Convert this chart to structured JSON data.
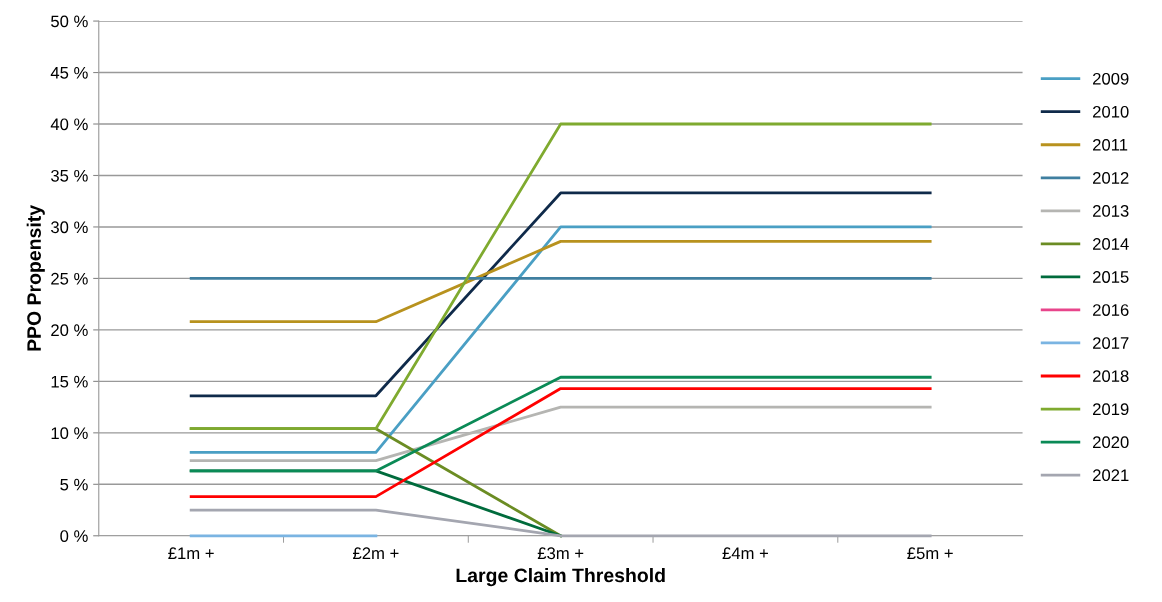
{
  "chart_data": {
    "type": "line",
    "xlabel": "Large Claim Threshold",
    "ylabel": "PPO Propensity",
    "categories": [
      "£1m +",
      "£2m +",
      "£3m +",
      "£4m +",
      "£5m +"
    ],
    "ylim": [
      0,
      50
    ],
    "yticks": [
      {
        "value": 0,
        "label": "0 %"
      },
      {
        "value": 5,
        "label": "5 %"
      },
      {
        "value": 10,
        "label": "10 %"
      },
      {
        "value": 15,
        "label": "15 %"
      },
      {
        "value": 20,
        "label": "20 %"
      },
      {
        "value": 25,
        "label": "25 %"
      },
      {
        "value": 30,
        "label": "30 %"
      },
      {
        "value": 35,
        "label": "35 %"
      },
      {
        "value": 40,
        "label": "40 %"
      },
      {
        "value": 45,
        "label": "45 %"
      },
      {
        "value": 50,
        "label": "50 %"
      }
    ],
    "grid": "y",
    "legend": "right",
    "marker": "none",
    "line_style": "solid",
    "series": [
      {
        "name": "2009",
        "color": "#4a9fc4",
        "values": [
          8.1,
          8.1,
          30,
          30,
          30
        ]
      },
      {
        "name": "2010",
        "color": "#0f2a4a",
        "values": [
          13.6,
          13.6,
          33.3,
          33.3,
          33.3
        ]
      },
      {
        "name": "2011",
        "color": "#b8921e",
        "values": [
          20.8,
          20.8,
          28.6,
          28.6,
          28.6
        ]
      },
      {
        "name": "2012",
        "color": "#3f7fa0",
        "values": [
          25,
          25,
          25,
          25,
          25
        ]
      },
      {
        "name": "2013",
        "color": "#b5b5b2",
        "values": [
          7.3,
          7.3,
          12.5,
          12.5,
          12.5
        ]
      },
      {
        "name": "2014",
        "color": "#6b8c23",
        "values": [
          10.4,
          10.4,
          0,
          null,
          null
        ]
      },
      {
        "name": "2015",
        "color": "#006b3c",
        "values": [
          6.3,
          6.3,
          0,
          null,
          null
        ]
      },
      {
        "name": "2016",
        "color": "#e8458b",
        "values": [
          null,
          null,
          null,
          null,
          null
        ]
      },
      {
        "name": "2017",
        "color": "#7ab4e2",
        "values": [
          0,
          0,
          null,
          null,
          null
        ]
      },
      {
        "name": "2018",
        "color": "#ff0000",
        "values": [
          3.8,
          3.8,
          14.3,
          14.3,
          14.3
        ]
      },
      {
        "name": "2019",
        "color": "#7faa2f",
        "values": [
          10.4,
          10.4,
          40,
          40,
          40
        ]
      },
      {
        "name": "2020",
        "color": "#0a8a56",
        "values": [
          6.3,
          6.3,
          15.4,
          15.4,
          15.4
        ]
      },
      {
        "name": "2021",
        "color": "#a4a6b0",
        "values": [
          2.5,
          2.5,
          0,
          0,
          0
        ]
      }
    ]
  }
}
